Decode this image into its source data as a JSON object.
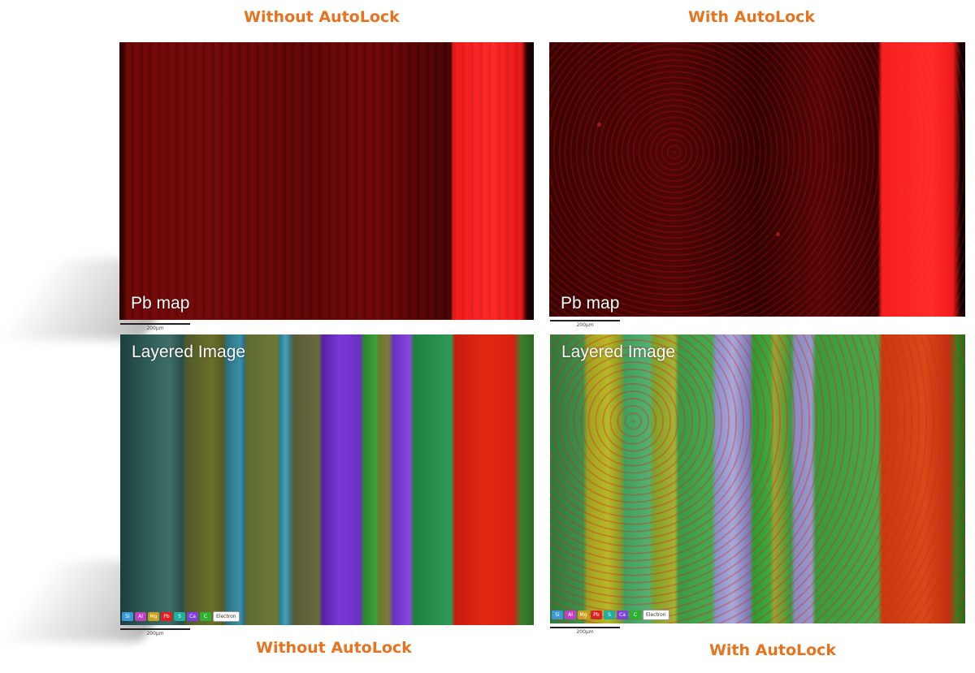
{
  "titles": {
    "top_left": "Without AutoLock",
    "top_right": "With AutoLock",
    "bottom_left": "Without AutoLock",
    "bottom_right": "With AutoLock"
  },
  "panels": {
    "pb_left": {
      "label": "Pb map",
      "scale": "200µm"
    },
    "pb_right": {
      "label": "Pb map",
      "scale": "200µm"
    },
    "layer_left": {
      "label": "Layered Image",
      "scale": "200µm"
    },
    "layer_right": {
      "label": "Layered Image",
      "scale": "200µm"
    }
  },
  "element_chips": [
    {
      "label": "Si",
      "color": "#3a9ad9"
    },
    {
      "label": "Al",
      "color": "#c040c0"
    },
    {
      "label": "Mg",
      "color": "#c8a020"
    },
    {
      "label": "Pb",
      "color": "#e02020"
    },
    {
      "label": "S",
      "color": "#20b0a0"
    },
    {
      "label": "Ca",
      "color": "#8040e0"
    },
    {
      "label": "C",
      "color": "#30b030"
    },
    {
      "label": "Electron",
      "color": "#ffffff"
    }
  ]
}
